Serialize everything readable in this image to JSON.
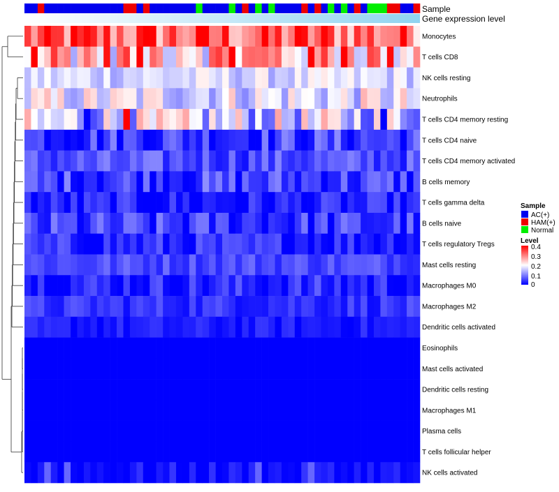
{
  "chart_data": {
    "type": "heatmap",
    "title": "",
    "annotation_tracks": [
      {
        "name": "Sample",
        "kind": "categorical"
      },
      {
        "name": "Gene expression level",
        "kind": "continuous"
      }
    ],
    "sample_groups": [
      "AC",
      "AC",
      "HAM",
      "AC",
      "AC",
      "AC",
      "AC",
      "AC",
      "AC",
      "AC",
      "AC",
      "AC",
      "AC",
      "AC",
      "AC",
      "HAM",
      "HAM",
      "AC",
      "HAM",
      "AC",
      "AC",
      "AC",
      "AC",
      "AC",
      "AC",
      "AC",
      "Normal",
      "AC",
      "AC",
      "AC",
      "AC",
      "Normal",
      "AC",
      "HAM",
      "AC",
      "Normal",
      "AC",
      "Normal",
      "AC",
      "AC",
      "AC",
      "AC",
      "HAM",
      "AC",
      "HAM",
      "AC",
      "Normal",
      "AC",
      "Normal",
      "AC",
      "HAM",
      "AC",
      "Normal",
      "Normal",
      "Normal",
      "HAM",
      "HAM",
      "AC",
      "AC",
      "HAM"
    ],
    "expression_track_color": "#8fd3f0",
    "legend_sample": {
      "title": "Sample",
      "entries": [
        {
          "label": "AC(+)",
          "color": "#0000ee"
        },
        {
          "label": "HAM(+)",
          "color": "#ee0000"
        },
        {
          "label": "Normal",
          "color": "#00ee00"
        }
      ]
    },
    "legend_level": {
      "title": "Level",
      "min": 0,
      "max": 0.4,
      "ticks": [
        "0.4",
        "0.3",
        "0.2",
        "0.1",
        "0"
      ],
      "colors": [
        "#0000ff",
        "#ffffff",
        "#ff0000"
      ]
    },
    "rows": [
      "Monocytes",
      "T cells CD8",
      "NK cells resting",
      "Neutrophils",
      "T cells CD4 memory resting",
      "T cells CD4 naive",
      "T cells CD4 memory activated",
      "B cells memory",
      "T cells gamma delta",
      "B cells naive",
      "T cells regulatory  Tregs",
      "Mast cells resting",
      "Macrophages M0",
      "Macrophages M2",
      "Dendritic cells activated",
      "Eosinophils",
      "Mast cells activated",
      "Dendritic cells resting",
      "Macrophages M1",
      "Plasma cells",
      "T cells follicular helper",
      "NK cells activated"
    ],
    "row_mean_level": [
      0.32,
      0.27,
      0.17,
      0.18,
      0.16,
      0.05,
      0.06,
      0.05,
      0.02,
      0.04,
      0.03,
      0.06,
      0.03,
      0.04,
      0.02,
      0.0,
      0.0,
      0.0,
      0.0,
      0.0,
      0.0,
      0.01
    ],
    "row_spread": [
      0.07,
      0.09,
      0.03,
      0.05,
      0.07,
      0.04,
      0.03,
      0.04,
      0.03,
      0.04,
      0.03,
      0.02,
      0.03,
      0.02,
      0.015,
      0.0,
      0.0,
      0.0,
      0.0,
      0.0,
      0.0,
      0.02
    ],
    "n_columns": 60
  }
}
